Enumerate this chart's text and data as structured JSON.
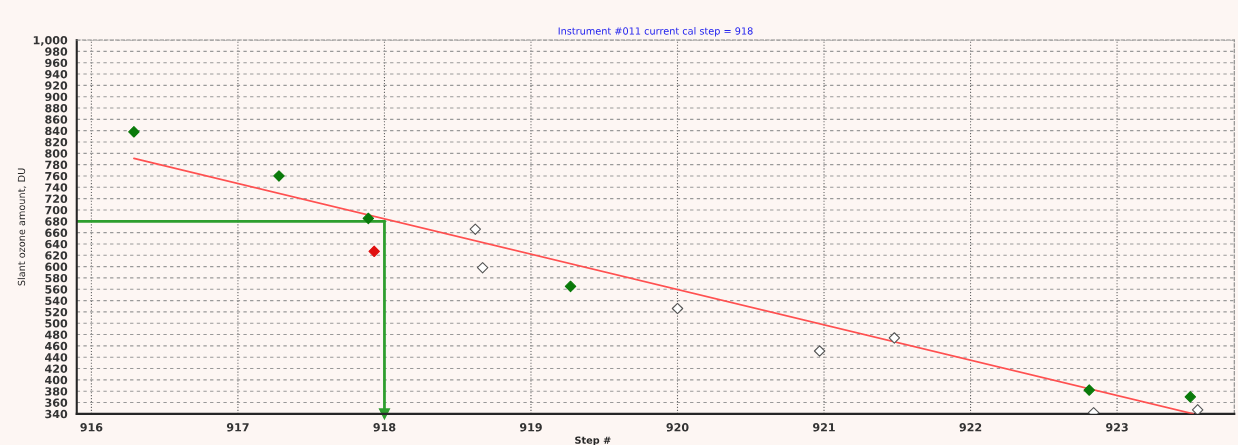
{
  "chart_data": {
    "type": "scatter",
    "title": "Instrument #011 current cal step = 918",
    "xlabel": "Step #",
    "ylabel": "Slant ozone amount, DU",
    "marker": "diamond",
    "grid": true,
    "legend": false,
    "xlim": [
      915.9,
      923.8
    ],
    "xticks": [
      916,
      917,
      918,
      919,
      920,
      921,
      922,
      923
    ],
    "ylim": [
      340,
      1000
    ],
    "yticks": [
      340,
      360,
      380,
      400,
      420,
      440,
      460,
      480,
      500,
      520,
      540,
      560,
      580,
      600,
      620,
      640,
      660,
      680,
      700,
      720,
      740,
      760,
      780,
      800,
      820,
      840,
      860,
      880,
      900,
      920,
      940,
      960,
      980,
      {
        "value": 1000,
        "label": "1,000"
      }
    ],
    "series": [
      {
        "color": "#0a7a0a",
        "x": [
          916.29,
          917.28,
          917.89,
          919.27,
          922.81,
          923.5
        ],
        "values": [
          838,
          760,
          685,
          565,
          382,
          370
        ]
      },
      {
        "color": "#e01010",
        "x": [
          917.93
        ],
        "values": [
          627
        ]
      },
      {
        "color": "#ffffff",
        "x": [
          918.62,
          918.67,
          920.0,
          920.97,
          921.48,
          922.84,
          923.55
        ],
        "values": [
          666,
          598,
          526,
          451,
          474,
          342,
          347
        ]
      },
      {
        "type": "line",
        "marker": "none",
        "color": "#ff5050",
        "x": [
          916.29,
          923.52
        ],
        "values": [
          791,
          340
        ]
      }
    ],
    "ref_lines": [
      {
        "axis": "y",
        "value": 680,
        "color": "#2e9e2e"
      },
      {
        "axis": "x",
        "value": 918,
        "color": "#2e9e2e"
      }
    ]
  }
}
